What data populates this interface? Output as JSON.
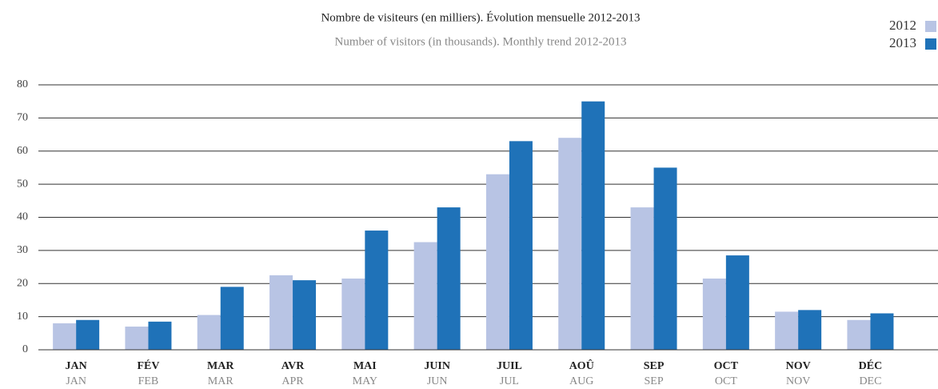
{
  "chart_data": {
    "type": "bar",
    "title": "Nombre de visiteurs (en milliers). Évolution mensuelle 2012-2013",
    "subtitle": "Number of visitors (in thousands). Monthly trend 2012-2013",
    "categories": [
      "JAN",
      "FÉV",
      "MAR",
      "AVR",
      "MAI",
      "JUIN",
      "JUIL",
      "AOÛ",
      "SEP",
      "OCT",
      "NOV",
      "DÉC"
    ],
    "categories_en": [
      "JAN",
      "FEB",
      "MAR",
      "APR",
      "MAY",
      "JUN",
      "JUL",
      "AUG",
      "SEP",
      "OCT",
      "NOV",
      "DEC"
    ],
    "series": [
      {
        "name": "2012",
        "color": "#b8c4e4",
        "values": [
          8,
          7,
          10.5,
          22.5,
          21.5,
          32.5,
          53,
          64,
          43,
          21.5,
          11.5,
          9
        ]
      },
      {
        "name": "2013",
        "color": "#1f72b8",
        "values": [
          9,
          8.5,
          19,
          21,
          36,
          43,
          63,
          75,
          55,
          28.5,
          12,
          11
        ]
      }
    ],
    "ylim": [
      0,
      80
    ],
    "yticks": [
      0,
      10,
      20,
      30,
      40,
      50,
      60,
      70,
      80
    ],
    "grid": true,
    "legend": "top-right"
  }
}
